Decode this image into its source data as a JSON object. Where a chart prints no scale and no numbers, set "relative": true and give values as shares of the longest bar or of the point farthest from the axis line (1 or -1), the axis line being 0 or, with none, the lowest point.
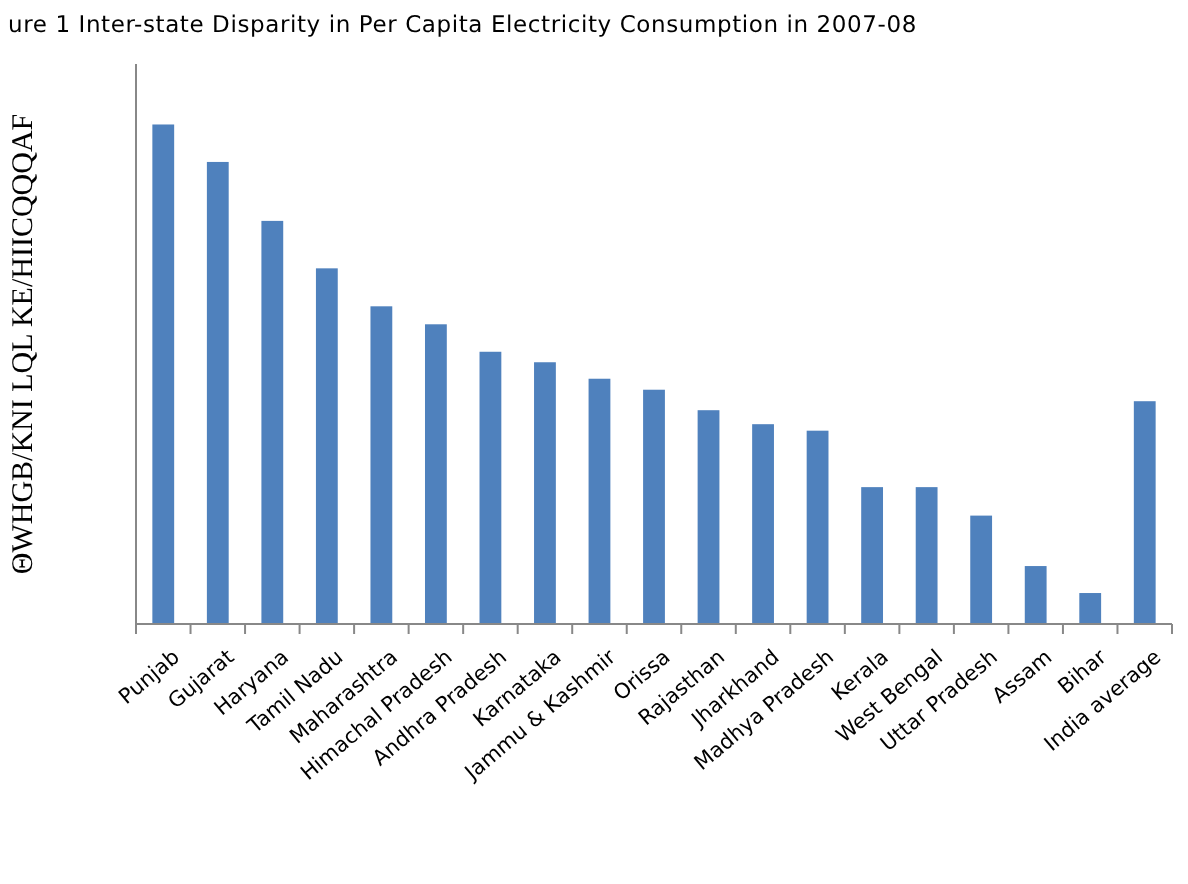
{
  "chart_data": {
    "type": "bar",
    "title": "ure 1 Inter-state Disparity in Per Capita Electricity Consumption in 2007-08",
    "ylabel": "ΘWHGB/KNI LQL KE/HIICQQQAF",
    "categories": [
      "Punjab",
      "Gujarat",
      "Haryana",
      "Tamil Nadu",
      "Maharashtra",
      "Himachal Pradesh",
      "Andhra Pradesh",
      "Karnataka",
      "Jammu & Kashmir",
      "Orissa",
      "Rajasthan",
      "Jharkhand",
      "Madhya Pradesh",
      "Kerala",
      "West Bengal",
      "Uttar Pradesh",
      "Assam",
      "Bihar",
      "India average"
    ],
    "values": [
      1,
      0.925,
      0.807,
      0.712,
      0.636,
      0.6,
      0.545,
      0.524,
      0.491,
      0.469,
      0.428,
      0.4,
      0.387,
      0.274,
      0.274,
      0.217,
      0.116,
      0.062,
      0.446
    ],
    "relative": true,
    "color": "#4f81bd"
  }
}
